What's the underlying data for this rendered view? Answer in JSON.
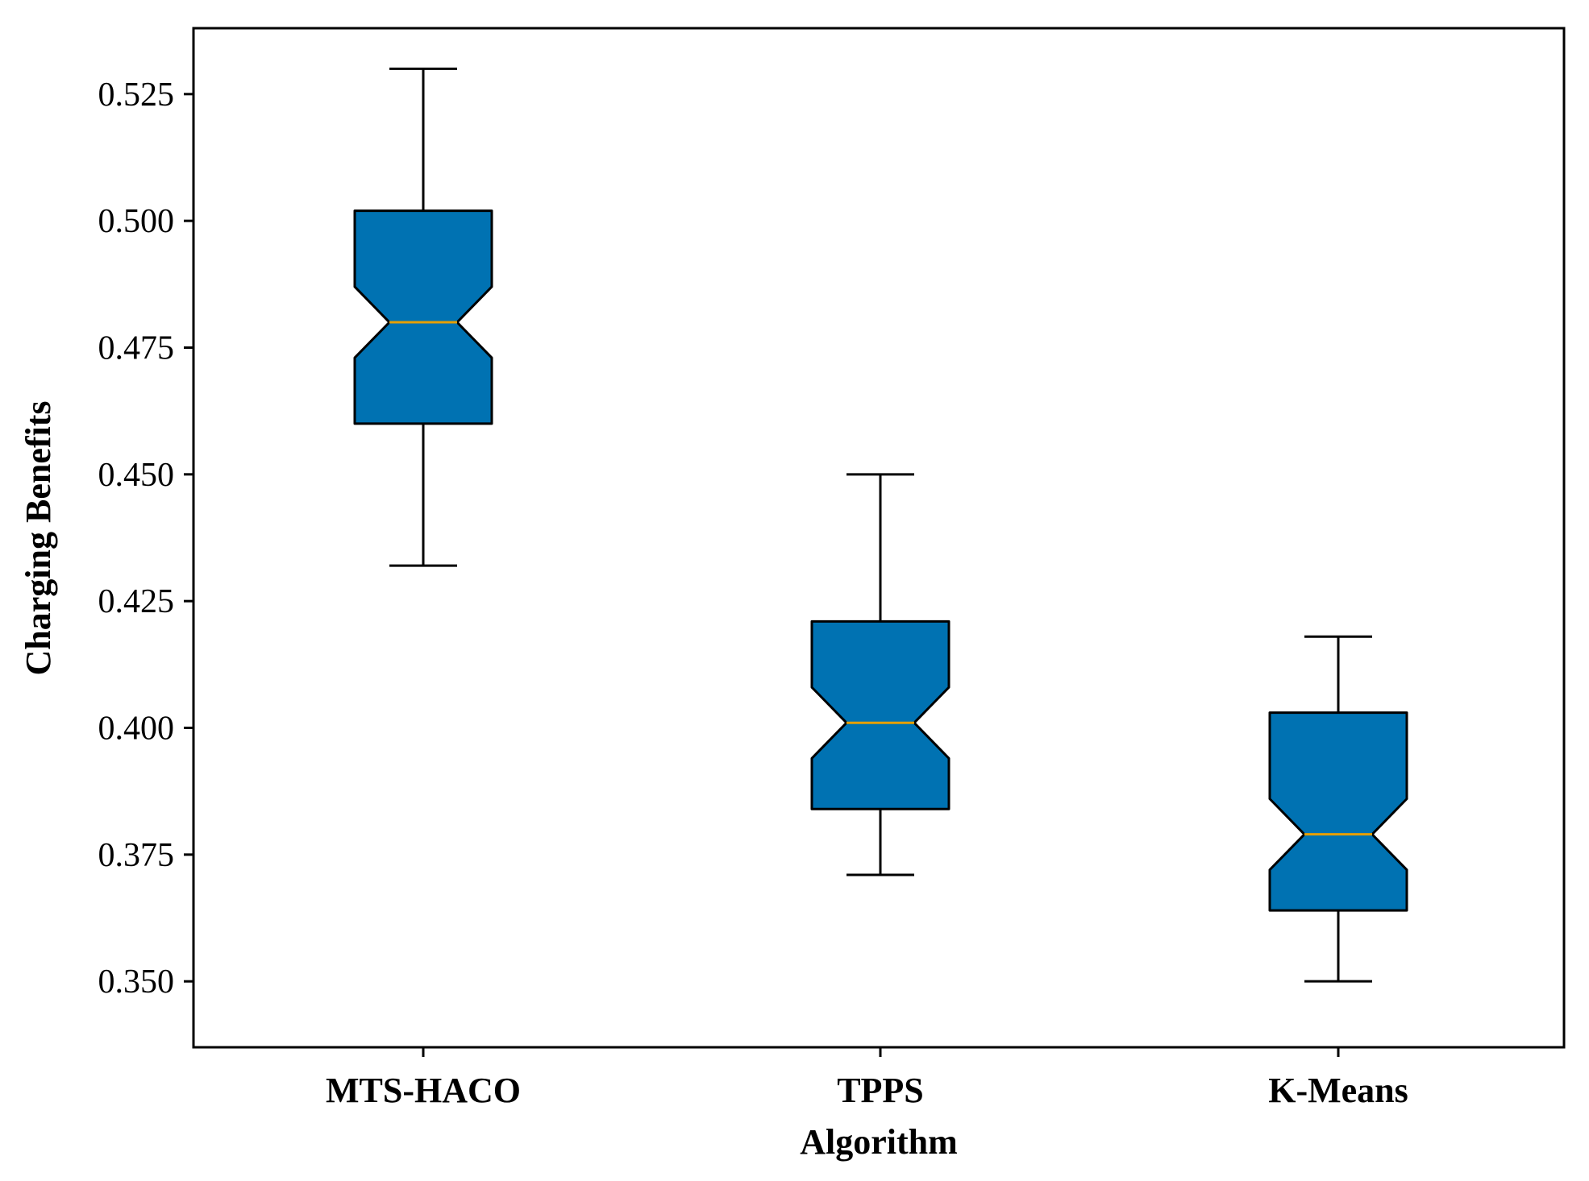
{
  "chart_data": {
    "type": "boxplot",
    "notched": true,
    "title": "",
    "xlabel": "Algorithm",
    "ylabel": "Charging Benefits",
    "ylim": [
      0.337,
      0.538
    ],
    "yticks": [
      0.35,
      0.375,
      0.4,
      0.425,
      0.45,
      0.475,
      0.5,
      0.525
    ],
    "ytick_labels": [
      "0.350",
      "0.375",
      "0.400",
      "0.425",
      "0.450",
      "0.475",
      "0.500",
      "0.525"
    ],
    "categories": [
      "MTS-HACO",
      "TPPS",
      "K-Means"
    ],
    "series": [
      {
        "name": "MTS-HACO",
        "whisker_low": 0.432,
        "q1": 0.46,
        "median": 0.48,
        "q3": 0.502,
        "whisker_high": 0.53,
        "notch_low": 0.473,
        "notch_high": 0.487
      },
      {
        "name": "TPPS",
        "whisker_low": 0.371,
        "q1": 0.384,
        "median": 0.401,
        "q3": 0.421,
        "whisker_high": 0.45,
        "notch_low": 0.394,
        "notch_high": 0.408
      },
      {
        "name": "K-Means",
        "whisker_low": 0.35,
        "q1": 0.364,
        "median": 0.379,
        "q3": 0.403,
        "whisker_high": 0.418,
        "notch_low": 0.372,
        "notch_high": 0.386
      }
    ],
    "colors": {
      "box_fill": "#0072B2",
      "median_line": "#E69F00",
      "edge": "#000000"
    }
  }
}
